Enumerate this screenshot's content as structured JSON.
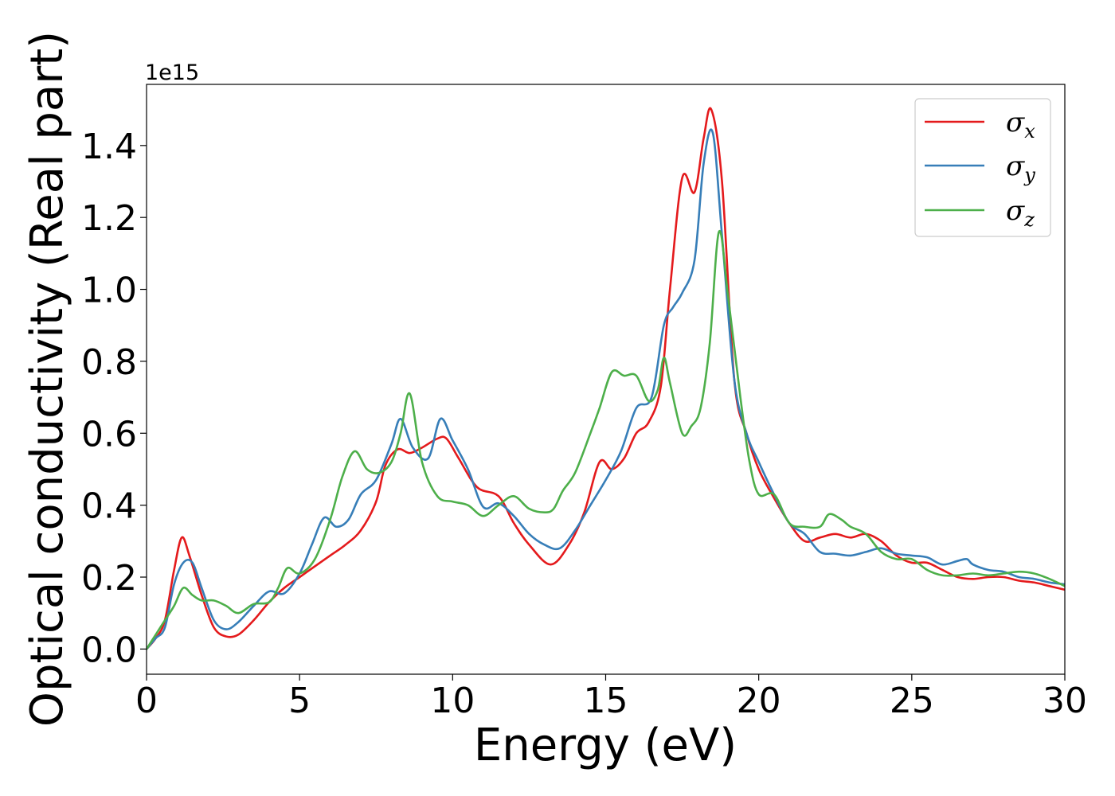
{
  "chart_data": {
    "type": "line",
    "xlabel": "Energy (eV)",
    "ylabel": "Optical conductivity (Real part)",
    "y_offset_label": "1e15",
    "xlim": [
      0,
      30
    ],
    "ylim": [
      -0.07,
      1.57
    ],
    "x_ticks": [
      0,
      5,
      10,
      15,
      20,
      25,
      30
    ],
    "x_tick_labels": [
      "0",
      "5",
      "10",
      "15",
      "20",
      "25",
      "30"
    ],
    "y_ticks": [
      0.0,
      0.2,
      0.4,
      0.6,
      0.8,
      1.0,
      1.2,
      1.4
    ],
    "y_tick_labels": [
      "0.0",
      "0.2",
      "0.4",
      "0.6",
      "0.8",
      "1.0",
      "1.2",
      "1.4"
    ],
    "grid": false,
    "legend_position": "top-right",
    "series": [
      {
        "name": "σx",
        "legend_symbol": "σ",
        "legend_sub": "x",
        "color": "#e41a1c",
        "points": [
          [
            0,
            0
          ],
          [
            0.3,
            0.03
          ],
          [
            0.6,
            0.08
          ],
          [
            0.9,
            0.22
          ],
          [
            1.15,
            0.31
          ],
          [
            1.4,
            0.26
          ],
          [
            1.8,
            0.15
          ],
          [
            2.2,
            0.06
          ],
          [
            2.6,
            0.035
          ],
          [
            3.0,
            0.04
          ],
          [
            3.5,
            0.08
          ],
          [
            4.0,
            0.13
          ],
          [
            4.5,
            0.17
          ],
          [
            5.0,
            0.2
          ],
          [
            5.5,
            0.23
          ],
          [
            6.0,
            0.26
          ],
          [
            6.5,
            0.29
          ],
          [
            7.0,
            0.33
          ],
          [
            7.5,
            0.41
          ],
          [
            7.8,
            0.51
          ],
          [
            8.2,
            0.555
          ],
          [
            8.6,
            0.545
          ],
          [
            9.0,
            0.56
          ],
          [
            9.5,
            0.585
          ],
          [
            9.8,
            0.585
          ],
          [
            10.2,
            0.53
          ],
          [
            10.8,
            0.45
          ],
          [
            11.5,
            0.425
          ],
          [
            12.0,
            0.35
          ],
          [
            12.5,
            0.29
          ],
          [
            13.2,
            0.235
          ],
          [
            13.8,
            0.29
          ],
          [
            14.3,
            0.38
          ],
          [
            14.8,
            0.52
          ],
          [
            15.2,
            0.5
          ],
          [
            15.6,
            0.53
          ],
          [
            16.0,
            0.6
          ],
          [
            16.4,
            0.63
          ],
          [
            16.8,
            0.73
          ],
          [
            17.1,
            1.0
          ],
          [
            17.5,
            1.31
          ],
          [
            17.9,
            1.27
          ],
          [
            18.2,
            1.42
          ],
          [
            18.45,
            1.5
          ],
          [
            18.8,
            1.3
          ],
          [
            19.2,
            0.75
          ],
          [
            19.6,
            0.6
          ],
          [
            20.0,
            0.5
          ],
          [
            20.5,
            0.42
          ],
          [
            21.0,
            0.35
          ],
          [
            21.5,
            0.3
          ],
          [
            22.0,
            0.31
          ],
          [
            22.5,
            0.32
          ],
          [
            23.0,
            0.31
          ],
          [
            23.5,
            0.32
          ],
          [
            24.0,
            0.3
          ],
          [
            24.5,
            0.26
          ],
          [
            25.0,
            0.24
          ],
          [
            25.5,
            0.24
          ],
          [
            26.0,
            0.22
          ],
          [
            26.5,
            0.2
          ],
          [
            27.0,
            0.195
          ],
          [
            27.5,
            0.2
          ],
          [
            28.0,
            0.2
          ],
          [
            28.5,
            0.19
          ],
          [
            29.0,
            0.185
          ],
          [
            29.5,
            0.175
          ],
          [
            30.0,
            0.165
          ]
        ]
      },
      {
        "name": "σy",
        "legend_symbol": "σ",
        "legend_sub": "y",
        "color": "#377eb8",
        "points": [
          [
            0,
            0
          ],
          [
            0.3,
            0.03
          ],
          [
            0.6,
            0.06
          ],
          [
            0.9,
            0.18
          ],
          [
            1.2,
            0.24
          ],
          [
            1.5,
            0.24
          ],
          [
            1.8,
            0.17
          ],
          [
            2.2,
            0.08
          ],
          [
            2.6,
            0.055
          ],
          [
            3.0,
            0.075
          ],
          [
            3.5,
            0.12
          ],
          [
            4.0,
            0.16
          ],
          [
            4.5,
            0.155
          ],
          [
            5.0,
            0.21
          ],
          [
            5.4,
            0.29
          ],
          [
            5.8,
            0.365
          ],
          [
            6.2,
            0.34
          ],
          [
            6.6,
            0.36
          ],
          [
            7.0,
            0.43
          ],
          [
            7.5,
            0.47
          ],
          [
            8.0,
            0.57
          ],
          [
            8.3,
            0.64
          ],
          [
            8.7,
            0.56
          ],
          [
            9.2,
            0.53
          ],
          [
            9.6,
            0.64
          ],
          [
            10.0,
            0.58
          ],
          [
            10.5,
            0.5
          ],
          [
            11.0,
            0.395
          ],
          [
            11.5,
            0.405
          ],
          [
            12.0,
            0.37
          ],
          [
            12.5,
            0.32
          ],
          [
            13.0,
            0.29
          ],
          [
            13.5,
            0.28
          ],
          [
            14.0,
            0.33
          ],
          [
            14.5,
            0.4
          ],
          [
            15.0,
            0.47
          ],
          [
            15.5,
            0.55
          ],
          [
            16.0,
            0.67
          ],
          [
            16.5,
            0.7
          ],
          [
            16.9,
            0.9
          ],
          [
            17.2,
            0.95
          ],
          [
            17.5,
            0.99
          ],
          [
            17.9,
            1.08
          ],
          [
            18.2,
            1.35
          ],
          [
            18.5,
            1.435
          ],
          [
            18.8,
            1.15
          ],
          [
            19.2,
            0.75
          ],
          [
            19.6,
            0.6
          ],
          [
            20.0,
            0.52
          ],
          [
            20.5,
            0.43
          ],
          [
            21.0,
            0.35
          ],
          [
            21.5,
            0.32
          ],
          [
            22.0,
            0.27
          ],
          [
            22.5,
            0.265
          ],
          [
            23.0,
            0.26
          ],
          [
            23.5,
            0.27
          ],
          [
            24.0,
            0.28
          ],
          [
            24.5,
            0.265
          ],
          [
            25.0,
            0.26
          ],
          [
            25.5,
            0.255
          ],
          [
            26.0,
            0.235
          ],
          [
            26.5,
            0.245
          ],
          [
            26.8,
            0.25
          ],
          [
            27.0,
            0.235
          ],
          [
            27.5,
            0.22
          ],
          [
            28.0,
            0.215
          ],
          [
            28.5,
            0.2
          ],
          [
            29.0,
            0.195
          ],
          [
            29.5,
            0.185
          ],
          [
            30.0,
            0.18
          ]
        ]
      },
      {
        "name": "σz",
        "legend_symbol": "σ",
        "legend_sub": "z",
        "color": "#4daf4a",
        "points": [
          [
            0,
            0
          ],
          [
            0.3,
            0.04
          ],
          [
            0.6,
            0.08
          ],
          [
            0.9,
            0.12
          ],
          [
            1.2,
            0.17
          ],
          [
            1.5,
            0.15
          ],
          [
            1.8,
            0.135
          ],
          [
            2.2,
            0.135
          ],
          [
            2.6,
            0.12
          ],
          [
            3.0,
            0.1
          ],
          [
            3.5,
            0.125
          ],
          [
            4.0,
            0.13
          ],
          [
            4.3,
            0.17
          ],
          [
            4.6,
            0.225
          ],
          [
            5.0,
            0.21
          ],
          [
            5.5,
            0.25
          ],
          [
            6.0,
            0.36
          ],
          [
            6.4,
            0.48
          ],
          [
            6.8,
            0.55
          ],
          [
            7.2,
            0.5
          ],
          [
            7.6,
            0.49
          ],
          [
            8.0,
            0.52
          ],
          [
            8.3,
            0.6
          ],
          [
            8.6,
            0.71
          ],
          [
            9.0,
            0.52
          ],
          [
            9.5,
            0.425
          ],
          [
            10.0,
            0.41
          ],
          [
            10.5,
            0.4
          ],
          [
            11.0,
            0.37
          ],
          [
            11.5,
            0.4
          ],
          [
            12.0,
            0.425
          ],
          [
            12.5,
            0.39
          ],
          [
            13.0,
            0.38
          ],
          [
            13.3,
            0.39
          ],
          [
            13.6,
            0.44
          ],
          [
            14.0,
            0.49
          ],
          [
            14.5,
            0.6
          ],
          [
            14.8,
            0.67
          ],
          [
            15.2,
            0.77
          ],
          [
            15.6,
            0.76
          ],
          [
            16.0,
            0.76
          ],
          [
            16.4,
            0.69
          ],
          [
            16.7,
            0.72
          ],
          [
            16.9,
            0.81
          ],
          [
            17.1,
            0.74
          ],
          [
            17.5,
            0.6
          ],
          [
            17.8,
            0.62
          ],
          [
            18.1,
            0.67
          ],
          [
            18.4,
            0.85
          ],
          [
            18.7,
            1.16
          ],
          [
            19.0,
            0.98
          ],
          [
            19.4,
            0.7
          ],
          [
            19.7,
            0.52
          ],
          [
            20.0,
            0.43
          ],
          [
            20.5,
            0.43
          ],
          [
            21.0,
            0.35
          ],
          [
            21.5,
            0.34
          ],
          [
            22.0,
            0.34
          ],
          [
            22.3,
            0.375
          ],
          [
            22.7,
            0.36
          ],
          [
            23.0,
            0.34
          ],
          [
            23.5,
            0.32
          ],
          [
            24.0,
            0.27
          ],
          [
            24.5,
            0.25
          ],
          [
            25.0,
            0.25
          ],
          [
            25.5,
            0.22
          ],
          [
            26.0,
            0.205
          ],
          [
            26.5,
            0.205
          ],
          [
            27.0,
            0.21
          ],
          [
            27.5,
            0.205
          ],
          [
            28.0,
            0.21
          ],
          [
            28.5,
            0.215
          ],
          [
            29.0,
            0.21
          ],
          [
            29.5,
            0.195
          ],
          [
            30.0,
            0.175
          ]
        ]
      }
    ]
  }
}
